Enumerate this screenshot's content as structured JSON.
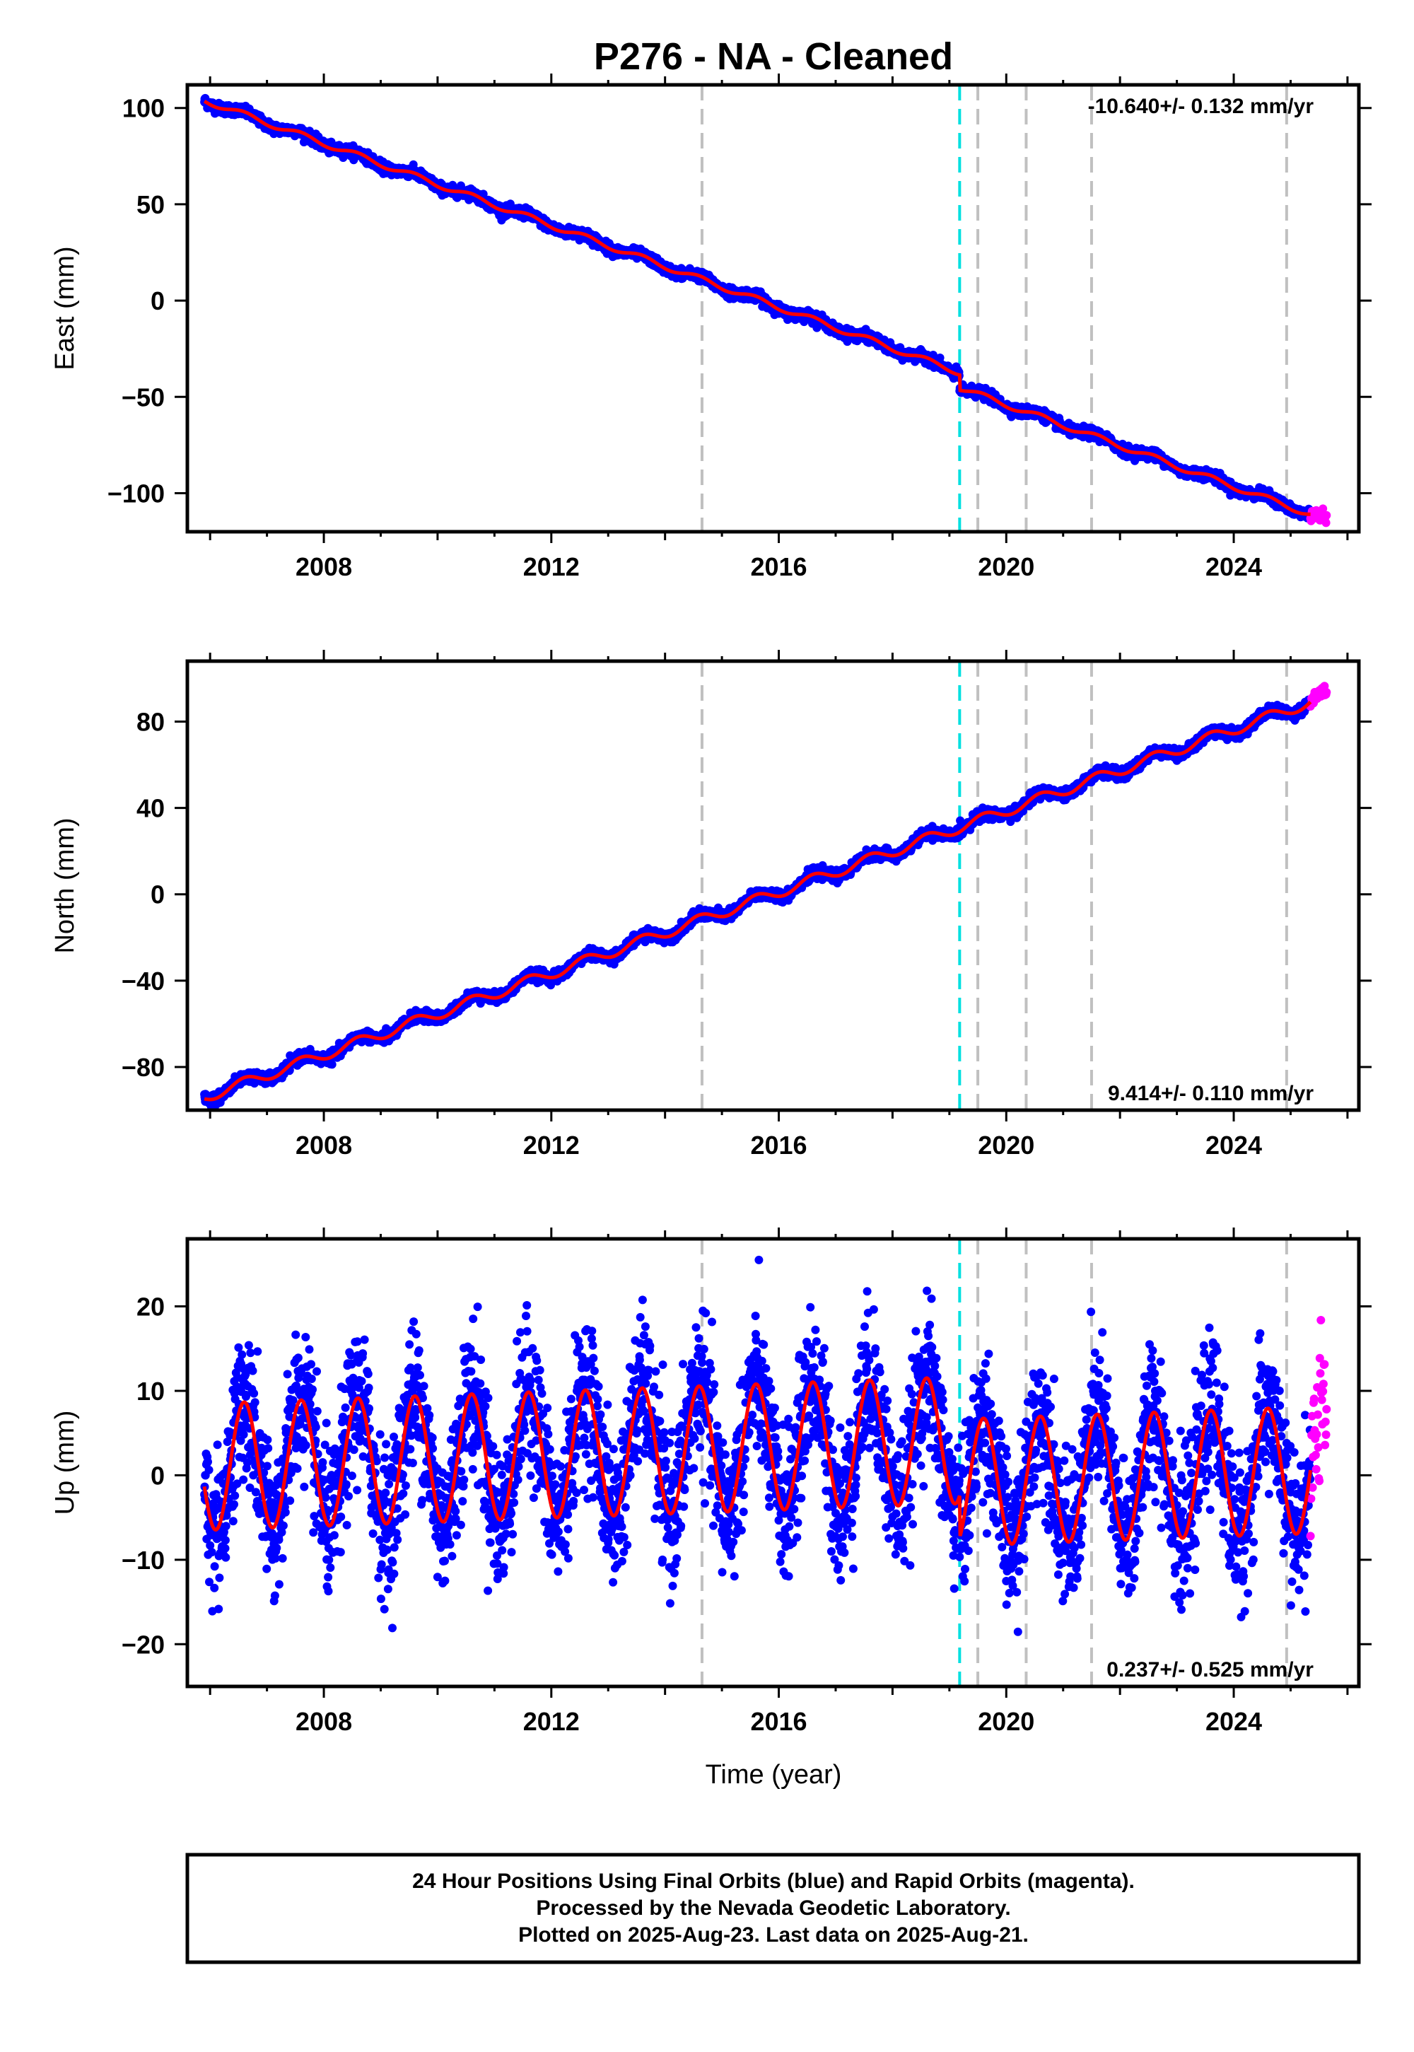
{
  "chart_data": {
    "title": "P276  - NA - Cleaned",
    "type": "scatter",
    "xlabel": "Time (year)",
    "x_ticks": [
      2008,
      2012,
      2016,
      2020,
      2024
    ],
    "x_minor_step": 2,
    "xlim": [
      2005.6,
      2026.2
    ],
    "data_start": 2005.9,
    "rapid_start": 2025.35,
    "data_end": 2025.64,
    "steps": [
      {
        "year": 2014.65,
        "type": "equipment",
        "color": "#c0c0c0"
      },
      {
        "year": 2019.18,
        "type": "earthquake",
        "color": "#00e0e0"
      },
      {
        "year": 2019.5,
        "type": "equipment",
        "color": "#c0c0c0"
      },
      {
        "year": 2020.35,
        "type": "equipment",
        "color": "#c0c0c0"
      },
      {
        "year": 2021.5,
        "type": "equipment",
        "color": "#c0c0c0"
      },
      {
        "year": 2024.93,
        "type": "equipment",
        "color": "#c0c0c0"
      }
    ],
    "colors": {
      "final_orbits": "#0000ff",
      "rapid_orbits": "#ff00ff",
      "model": "#ff0000"
    },
    "panels": [
      {
        "component": "east",
        "ylabel": "East (mm)",
        "ylim": [
          -120,
          112
        ],
        "yticks": [
          100,
          50,
          0,
          -50,
          -100
        ],
        "rate_text": "-10.640+/- 0.132 mm/yr",
        "rate_position": "top-right",
        "model": {
          "start_value": 104,
          "rate": -10.64,
          "seasonal_amplitude": 1.5,
          "offsets": [
            {
              "year": 2019.18,
              "value": -8
            }
          ],
          "noise_sd": 1.3
        }
      },
      {
        "component": "north",
        "ylabel": "North (mm)",
        "ylim": [
          -100,
          108
        ],
        "yticks": [
          80,
          40,
          0,
          -40,
          -80
        ],
        "rate_text": "9.414+/- 0.110 mm/yr",
        "rate_position": "bottom-right",
        "model": {
          "start_value": -94,
          "rate": 9.414,
          "seasonal_amplitude": 2.5,
          "offsets": [],
          "noise_sd": 1.2
        }
      },
      {
        "component": "up",
        "ylabel": "Up (mm)",
        "ylim": [
          -25,
          28
        ],
        "yticks": [
          20,
          10,
          0,
          -10,
          -20
        ],
        "rate_text": "0.237+/- 0.525 mm/yr",
        "rate_position": "bottom-right",
        "model": {
          "start_value": 1,
          "rate": 0.237,
          "seasonal_amplitude": 7.5,
          "offsets": [
            {
              "year": 2019.18,
              "value": -5
            }
          ],
          "noise_sd": 4.2
        }
      }
    ]
  },
  "footer": {
    "line1": "24 Hour Positions Using Final Orbits (blue) and Rapid Orbits (magenta).",
    "line2": "Processed by the Nevada Geodetic Laboratory.",
    "line3": "Plotted on 2025-Aug-23. Last data on 2025-Aug-21."
  }
}
